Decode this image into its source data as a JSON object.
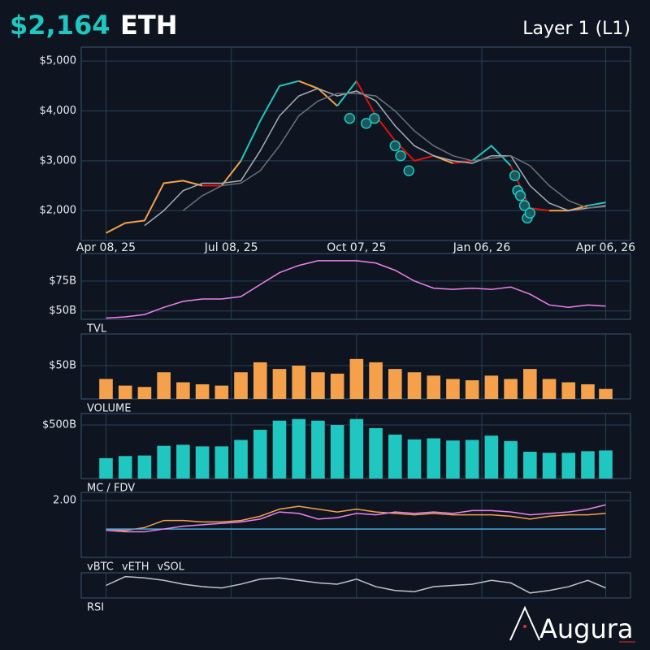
{
  "header": {
    "price": "$2,164",
    "symbol": "ETH",
    "category": "Layer 1 (L1)",
    "logo": "Augura"
  },
  "chart_data": [
    {
      "type": "line",
      "x": [
        "2025-04-08",
        "2025-04-22",
        "2025-05-06",
        "2025-05-20",
        "2025-06-03",
        "2025-06-17",
        "2025-07-01",
        "2025-07-15",
        "2025-07-29",
        "2025-08-12",
        "2025-08-26",
        "2025-09-09",
        "2025-09-23",
        "2025-10-07",
        "2025-10-21",
        "2025-11-04",
        "2025-11-18",
        "2025-12-02",
        "2025-12-16",
        "2025-12-30",
        "2026-01-13",
        "2026-01-27",
        "2026-02-10",
        "2026-02-24",
        "2026-03-10",
        "2026-03-24",
        "2026-04-06"
      ],
      "xlim": [
        "2025-03-21",
        "2026-04-24"
      ],
      "xticks": [
        {
          "value": "2025-04-08",
          "label": "Apr 08, 25"
        },
        {
          "value": "2025-07-08",
          "label": "Jul 08, 25"
        },
        {
          "value": "2025-10-07",
          "label": "Oct 07, 25"
        },
        {
          "value": "2026-01-06",
          "label": "Jan 06, 26"
        },
        {
          "value": "2026-04-06",
          "label": "Apr 06, 26"
        }
      ],
      "ylim": [
        1400,
        5280
      ],
      "yticks": [
        {
          "value": 2000,
          "label": "$2,000"
        },
        {
          "value": 3000,
          "label": "$3,000"
        },
        {
          "value": 4000,
          "label": "$4,000"
        },
        {
          "value": 5000,
          "label": "$5,000"
        }
      ],
      "grid": true,
      "series": [
        {
          "values": [
            1550,
            1750,
            1800,
            2550,
            2600,
            2500,
            2500,
            3000,
            3800,
            4500,
            4600,
            4450,
            4100,
            4600,
            3900,
            3400,
            3000,
            3100,
            2950,
            3000,
            3300,
            2900,
            2050,
            2000,
            2000,
            2100,
            2164
          ],
          "segment_colors": [
            "#f5a04a",
            "#f5a04a",
            "#f5a04a",
            "#f5a04a",
            "#f5a04a",
            "#e01010",
            "#f5a04a",
            "#20c6c0",
            "#20c6c0",
            "#20c6c0",
            "#f5a04a",
            "#f5a04a",
            "#20c6c0",
            "#e01010",
            "#e01010",
            "#e01010",
            "#e01010",
            "#f5a04a",
            "#e01010",
            "#20c6c0",
            "#20c6c0",
            "#e01010",
            "#e01010",
            "#f5a04a",
            "#f5a04a",
            "#20c6c0",
            "#20c6c0"
          ]
        },
        {
          "values": [
            null,
            null,
            1700,
            2000,
            2400,
            2550,
            2550,
            2600,
            3200,
            3900,
            4300,
            4450,
            4300,
            4400,
            4200,
            3700,
            3300,
            3100,
            3000,
            2950,
            3100,
            3100,
            2500,
            2150,
            2000,
            2050,
            2100
          ],
          "color": "#a8adb5"
        },
        {
          "values": [
            null,
            null,
            null,
            null,
            2000,
            2300,
            2500,
            2550,
            2800,
            3300,
            3900,
            4200,
            4350,
            4350,
            4300,
            4000,
            3600,
            3300,
            3100,
            3000,
            3050,
            3100,
            2900,
            2500,
            2200,
            2050,
            2080
          ],
          "color": "#6c727b"
        }
      ],
      "markers": {
        "x": [
          "2025-10-02",
          "2025-10-14",
          "2025-10-20",
          "2025-11-04",
          "2025-11-08",
          "2025-11-14",
          "2026-01-30",
          "2026-02-01",
          "2026-02-03",
          "2026-02-06",
          "2026-02-08",
          "2026-02-10"
        ],
        "values": [
          3850,
          3750,
          3850,
          3300,
          3100,
          2800,
          2700,
          2400,
          2300,
          2100,
          1850,
          1950
        ],
        "color": "#20c6c0"
      }
    },
    {
      "type": "line",
      "title": "TVL",
      "color": "#ee82ee",
      "x": [
        "2025-04-08",
        "2025-04-22",
        "2025-05-06",
        "2025-05-20",
        "2025-06-03",
        "2025-06-17",
        "2025-07-01",
        "2025-07-15",
        "2025-07-29",
        "2025-08-12",
        "2025-08-26",
        "2025-09-09",
        "2025-09-23",
        "2025-10-07",
        "2025-10-21",
        "2025-11-04",
        "2025-11-18",
        "2025-12-02",
        "2025-12-16",
        "2025-12-30",
        "2026-01-13",
        "2026-01-27",
        "2026-02-10",
        "2026-02-24",
        "2026-03-10",
        "2026-03-24",
        "2026-04-06"
      ],
      "values": [
        44,
        45,
        47,
        53,
        58,
        60,
        60,
        62,
        72,
        82,
        88,
        92,
        92,
        92,
        90,
        84,
        75,
        69,
        68,
        69,
        68,
        70,
        64,
        55,
        53,
        55,
        54
      ],
      "ylim": [
        43,
        98
      ],
      "yticks": [
        {
          "value": 50,
          "label": "$50B"
        },
        {
          "value": 75,
          "label": "$75B"
        }
      ]
    },
    {
      "type": "bar",
      "title": "VOLUME",
      "color": "#f5a04a",
      "x": [
        "2025-04-08",
        "2025-04-22",
        "2025-05-06",
        "2025-05-20",
        "2025-06-03",
        "2025-06-17",
        "2025-07-01",
        "2025-07-15",
        "2025-07-29",
        "2025-08-12",
        "2025-08-26",
        "2025-09-09",
        "2025-09-23",
        "2025-10-07",
        "2025-10-21",
        "2025-11-04",
        "2025-11-18",
        "2025-12-02",
        "2025-12-16",
        "2025-12-30",
        "2026-01-13",
        "2026-01-27",
        "2026-02-10",
        "2026-02-24",
        "2026-03-10",
        "2026-03-24",
        "2026-04-06"
      ],
      "values": [
        30,
        20,
        18,
        40,
        25,
        22,
        20,
        40,
        55,
        45,
        50,
        40,
        38,
        60,
        55,
        45,
        40,
        35,
        30,
        28,
        35,
        30,
        45,
        30,
        25,
        22,
        15
      ],
      "ylim": [
        0,
        97.6
      ],
      "yticks": [
        {
          "value": 50,
          "label": "$50B"
        }
      ]
    },
    {
      "type": "bar",
      "title": "MC / FDV",
      "color": "#20c6c0",
      "x": [
        "2025-04-08",
        "2025-04-22",
        "2025-05-06",
        "2025-05-20",
        "2025-06-03",
        "2025-06-17",
        "2025-07-01",
        "2025-07-15",
        "2025-07-29",
        "2025-08-12",
        "2025-08-26",
        "2025-09-09",
        "2025-09-23",
        "2025-10-07",
        "2025-10-21",
        "2025-11-04",
        "2025-11-18",
        "2025-12-02",
        "2025-12-16",
        "2025-12-30",
        "2026-01-13",
        "2026-01-27",
        "2026-02-10",
        "2026-02-24",
        "2026-03-10",
        "2026-03-24",
        "2026-04-06"
      ],
      "values": [
        190,
        210,
        215,
        305,
        315,
        300,
        300,
        360,
        455,
        540,
        555,
        540,
        500,
        555,
        470,
        410,
        365,
        375,
        355,
        360,
        400,
        350,
        250,
        240,
        240,
        255,
        262
      ],
      "ylim": [
        0,
        606
      ],
      "yticks": [
        {
          "value": 500,
          "label": "$500B"
        }
      ]
    },
    {
      "type": "line",
      "x": [
        "2025-04-08",
        "2025-04-22",
        "2025-05-06",
        "2025-05-20",
        "2025-06-03",
        "2025-06-17",
        "2025-07-01",
        "2025-07-15",
        "2025-07-29",
        "2025-08-12",
        "2025-08-26",
        "2025-09-09",
        "2025-09-23",
        "2025-10-07",
        "2025-10-21",
        "2025-11-04",
        "2025-11-18",
        "2025-12-02",
        "2025-12-16",
        "2025-12-30",
        "2026-01-13",
        "2026-01-27",
        "2026-02-10",
        "2026-02-24",
        "2026-03-10",
        "2026-03-24",
        "2026-04-06"
      ],
      "ylim": [
        0,
        2.29
      ],
      "yticks": [
        {
          "value": 2,
          "label": "2.00"
        }
      ],
      "series": [
        {
          "name": "vBTC",
          "color": "#f5a04a",
          "values": [
            1,
            0.95,
            1.05,
            1.3,
            1.3,
            1.25,
            1.25,
            1.3,
            1.45,
            1.7,
            1.8,
            1.7,
            1.6,
            1.7,
            1.6,
            1.55,
            1.5,
            1.55,
            1.5,
            1.5,
            1.5,
            1.45,
            1.35,
            1.45,
            1.5,
            1.5,
            1.55
          ]
        },
        {
          "name": "vETH",
          "color": "#4aa8e0",
          "values": [
            1,
            1,
            1,
            1,
            1,
            1,
            1,
            1,
            1,
            1,
            1,
            1,
            1,
            1,
            1,
            1,
            1,
            1,
            1,
            1,
            1,
            1,
            1,
            1,
            1,
            1,
            1
          ]
        },
        {
          "name": "vSOL",
          "color": "#ee82ee",
          "values": [
            0.95,
            0.9,
            0.9,
            1.0,
            1.1,
            1.15,
            1.2,
            1.25,
            1.35,
            1.6,
            1.55,
            1.35,
            1.4,
            1.55,
            1.5,
            1.6,
            1.55,
            1.6,
            1.55,
            1.65,
            1.65,
            1.6,
            1.5,
            1.55,
            1.6,
            1.7,
            1.85
          ]
        }
      ]
    },
    {
      "type": "line",
      "title": "RSI",
      "color": "#c0c4ca",
      "x": [
        "2025-04-08",
        "2025-04-22",
        "2025-05-06",
        "2025-05-20",
        "2025-06-03",
        "2025-06-17",
        "2025-07-01",
        "2025-07-15",
        "2025-07-29",
        "2025-08-12",
        "2025-08-26",
        "2025-09-09",
        "2025-09-23",
        "2025-10-07",
        "2025-10-21",
        "2025-11-04",
        "2025-11-18",
        "2025-12-02",
        "2025-12-16",
        "2025-12-30",
        "2026-01-13",
        "2026-01-27",
        "2026-02-10",
        "2026-02-24",
        "2026-03-10",
        "2026-03-24",
        "2026-04-06"
      ],
      "values": [
        50,
        85,
        80,
        70,
        55,
        45,
        40,
        55,
        75,
        80,
        70,
        60,
        55,
        75,
        45,
        30,
        25,
        45,
        50,
        55,
        70,
        60,
        20,
        30,
        45,
        70,
        40
      ],
      "ylim": [
        0,
        100
      ]
    }
  ]
}
